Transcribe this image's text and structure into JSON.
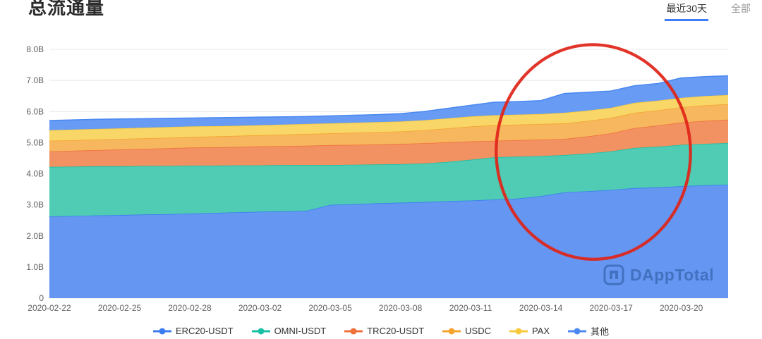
{
  "page": {
    "title": "总流通量"
  },
  "tabs": [
    {
      "label": "最近30天",
      "active": true
    },
    {
      "label": "全部",
      "active": false
    }
  ],
  "watermark": {
    "text": "DAppTotal",
    "logo": "dapptotal-bracket-logo"
  },
  "colors": {
    "accent": "#3e7cfa",
    "grid": "#e8e8e8",
    "axis_label": "#5f5f5f",
    "annotation_red": "#df2418"
  },
  "chart_data": {
    "type": "area",
    "stacked": true,
    "title": "总流通量",
    "unit": "B",
    "ylim": [
      0,
      8
    ],
    "grid": true,
    "legend_position": "bottom",
    "y_ticks": [
      "0",
      "1.0B",
      "2.0B",
      "3.0B",
      "4.0B",
      "5.0B",
      "6.0B",
      "7.0B",
      "8.0B"
    ],
    "x_tick_every": 3,
    "x": [
      "2020-02-22",
      "2020-02-23",
      "2020-02-24",
      "2020-02-25",
      "2020-02-26",
      "2020-02-27",
      "2020-02-28",
      "2020-02-29",
      "2020-03-01",
      "2020-03-02",
      "2020-03-03",
      "2020-03-04",
      "2020-03-05",
      "2020-03-06",
      "2020-03-07",
      "2020-03-08",
      "2020-03-09",
      "2020-03-10",
      "2020-03-11",
      "2020-03-12",
      "2020-03-13",
      "2020-03-14",
      "2020-03-15",
      "2020-03-16",
      "2020-03-17",
      "2020-03-18",
      "2020-03-19",
      "2020-03-20",
      "2020-03-21",
      "2020-03-22"
    ],
    "series": [
      {
        "name": "ERC20-USDT",
        "fill": "#6496f2",
        "line": "#3b7df0",
        "values": [
          2.63,
          2.64,
          2.66,
          2.67,
          2.69,
          2.7,
          2.72,
          2.74,
          2.76,
          2.78,
          2.79,
          2.81,
          3.0,
          3.02,
          3.05,
          3.07,
          3.09,
          3.12,
          3.14,
          3.17,
          3.2,
          3.28,
          3.4,
          3.44,
          3.48,
          3.54,
          3.56,
          3.6,
          3.63,
          3.65
        ]
      },
      {
        "name": "OMNI-USDT",
        "fill": "#4fccb3",
        "line": "#18c0a5",
        "values": [
          1.59,
          1.59,
          1.58,
          1.57,
          1.56,
          1.55,
          1.54,
          1.52,
          1.51,
          1.49,
          1.49,
          1.47,
          1.28,
          1.27,
          1.25,
          1.24,
          1.24,
          1.26,
          1.31,
          1.36,
          1.35,
          1.29,
          1.2,
          1.21,
          1.24,
          1.29,
          1.31,
          1.33,
          1.33,
          1.34
        ]
      },
      {
        "name": "TRC20-USDT",
        "fill": "#f29263",
        "line": "#f0703a",
        "values": [
          0.5,
          0.51,
          0.52,
          0.54,
          0.55,
          0.57,
          0.58,
          0.59,
          0.59,
          0.61,
          0.61,
          0.62,
          0.64,
          0.64,
          0.64,
          0.65,
          0.65,
          0.63,
          0.59,
          0.53,
          0.53,
          0.53,
          0.52,
          0.55,
          0.58,
          0.64,
          0.68,
          0.72,
          0.74,
          0.75
        ]
      },
      {
        "name": "USDC",
        "fill": "#f6b75f",
        "line": "#f4a42e",
        "values": [
          0.34,
          0.34,
          0.34,
          0.34,
          0.34,
          0.34,
          0.34,
          0.35,
          0.36,
          0.36,
          0.37,
          0.38,
          0.38,
          0.39,
          0.4,
          0.4,
          0.42,
          0.45,
          0.48,
          0.5,
          0.5,
          0.5,
          0.5,
          0.5,
          0.5,
          0.49,
          0.49,
          0.49,
          0.5,
          0.5
        ]
      },
      {
        "name": "PAX",
        "fill": "#f8d768",
        "line": "#f7ca3d",
        "values": [
          0.34,
          0.34,
          0.34,
          0.34,
          0.34,
          0.34,
          0.34,
          0.33,
          0.32,
          0.32,
          0.32,
          0.32,
          0.32,
          0.32,
          0.32,
          0.32,
          0.32,
          0.32,
          0.32,
          0.32,
          0.32,
          0.32,
          0.34,
          0.33,
          0.32,
          0.32,
          0.31,
          0.3,
          0.3,
          0.29
        ]
      },
      {
        "name": "其他",
        "fill": "#689bf3",
        "line": "#4b89f1",
        "values": [
          0.31,
          0.31,
          0.31,
          0.3,
          0.29,
          0.28,
          0.27,
          0.27,
          0.27,
          0.26,
          0.25,
          0.24,
          0.24,
          0.24,
          0.24,
          0.25,
          0.28,
          0.32,
          0.36,
          0.42,
          0.42,
          0.43,
          0.62,
          0.59,
          0.54,
          0.55,
          0.55,
          0.64,
          0.62,
          0.62
        ]
      }
    ],
    "annotation": {
      "shape": "ellipse",
      "x_from": "2020-03-12",
      "x_to": "2020-03-20",
      "y_from_b": 1.25,
      "y_to_b": 8.15,
      "color": "#df2418",
      "rotation_deg": -2,
      "stroke_width": 4.3
    }
  }
}
